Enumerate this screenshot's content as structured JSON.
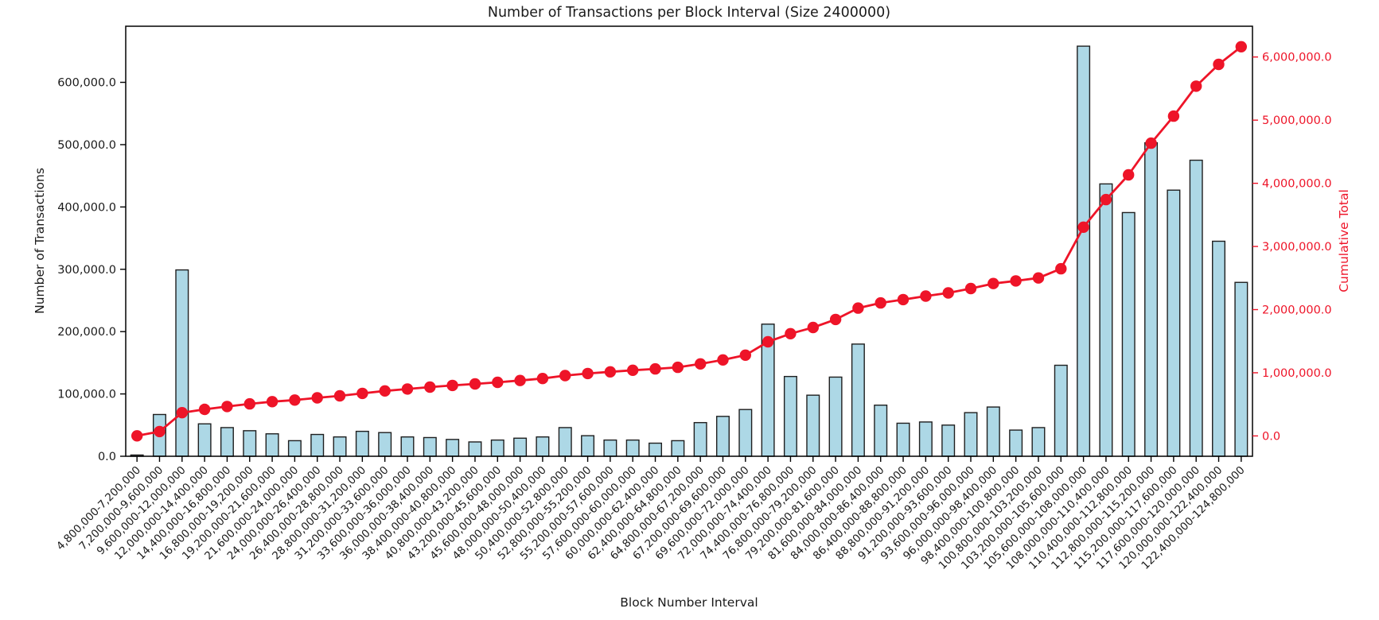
{
  "chart_data": {
    "type": "bar",
    "title": "Number of Transactions per Block Interval (Size 2400000)",
    "xlabel": "Block Number Interval",
    "ylabel_left": "Number of Transactions",
    "ylabel_right": "Cumulative Total",
    "legend": "none",
    "grid": false,
    "categories": [
      "4,800,000-7,200,000",
      "7,200,000-9,600,000",
      "9,600,000-12,000,000",
      "12,000,000-14,400,000",
      "14,400,000-16,800,000",
      "16,800,000-19,200,000",
      "19,200,000-21,600,000",
      "21,600,000-24,000,000",
      "24,000,000-26,400,000",
      "26,400,000-28,800,000",
      "28,800,000-31,200,000",
      "31,200,000-33,600,000",
      "33,600,000-36,000,000",
      "36,000,000-38,400,000",
      "38,400,000-40,800,000",
      "40,800,000-43,200,000",
      "43,200,000-45,600,000",
      "45,600,000-48,000,000",
      "48,000,000-50,400,000",
      "50,400,000-52,800,000",
      "52,800,000-55,200,000",
      "55,200,000-57,600,000",
      "57,600,000-60,000,000",
      "60,000,000-62,400,000",
      "62,400,000-64,800,000",
      "64,800,000-67,200,000",
      "67,200,000-69,600,000",
      "69,600,000-72,000,000",
      "72,000,000-74,400,000",
      "74,400,000-76,800,000",
      "76,800,000-79,200,000",
      "79,200,000-81,600,000",
      "81,600,000-84,000,000",
      "84,000,000-86,400,000",
      "86,400,000-88,800,000",
      "88,800,000-91,200,000",
      "91,200,000-93,600,000",
      "93,600,000-96,000,000",
      "96,000,000-98,400,000",
      "98,400,000-100,800,000",
      "100,800,000-103,200,000",
      "103,200,000-105,600,000",
      "105,600,000-108,000,000",
      "108,000,000-110,400,000",
      "110,400,000-112,800,000",
      "112,800,000-115,200,000",
      "115,200,000-117,600,000",
      "117,600,000-120,000,000",
      "120,000,000-122,400,000",
      "122,400,000-124,800,000"
    ],
    "series": [
      {
        "name": "Number of Transactions",
        "type": "bar",
        "axis": "left",
        "values": [
          2000,
          67000,
          299000,
          52000,
          46000,
          41000,
          36000,
          25000,
          35000,
          31000,
          40000,
          38000,
          31000,
          30000,
          27000,
          23000,
          26000,
          29000,
          31000,
          46000,
          33000,
          26000,
          26000,
          21000,
          25000,
          54000,
          64000,
          75000,
          212000,
          128000,
          98000,
          127000,
          180000,
          82000,
          53000,
          55000,
          50000,
          70000,
          79000,
          42000,
          46000,
          146000,
          658000,
          437000,
          391000,
          503000,
          427000,
          475000,
          345000,
          279000
        ]
      },
      {
        "name": "Cumulative Total",
        "type": "line",
        "axis": "right",
        "values": [
          2000,
          69000,
          368000,
          420000,
          466000,
          507000,
          543000,
          568000,
          603000,
          634000,
          674000,
          712000,
          743000,
          773000,
          800000,
          823000,
          849000,
          878000,
          909000,
          955000,
          988000,
          1014000,
          1040000,
          1061000,
          1086000,
          1140000,
          1204000,
          1279000,
          1491000,
          1619000,
          1717000,
          1844000,
          2024000,
          2106000,
          2159000,
          2214000,
          2264000,
          2334000,
          2413000,
          2455000,
          2501000,
          2647000,
          3305000,
          3742000,
          4133000,
          4636000,
          5063000,
          5538000,
          5883000,
          6162000
        ]
      }
    ],
    "left_axis": {
      "range": [
        0,
        690000
      ],
      "ticks": [
        0,
        100000,
        200000,
        300000,
        400000,
        500000,
        600000
      ],
      "tick_labels": [
        "0.0",
        "100,000.0",
        "200,000.0",
        "300,000.0",
        "400,000.0",
        "500,000.0",
        "600,000.0"
      ]
    },
    "right_axis": {
      "range": [
        -322000,
        6487000
      ],
      "ticks": [
        0,
        1000000,
        2000000,
        3000000,
        4000000,
        5000000,
        6000000
      ],
      "tick_labels": [
        "0.0",
        "1,000,000.0",
        "2,000,000.0",
        "3,000,000.0",
        "4,000,000.0",
        "5,000,000.0",
        "6,000,000.0"
      ]
    },
    "colors": {
      "bar_fill": "#ADD8E6",
      "bar_edge": "#1f1f1f",
      "line": "#ee1428",
      "text": "#1a1a1a",
      "background": "#ffffff",
      "spine": "#000000"
    }
  }
}
